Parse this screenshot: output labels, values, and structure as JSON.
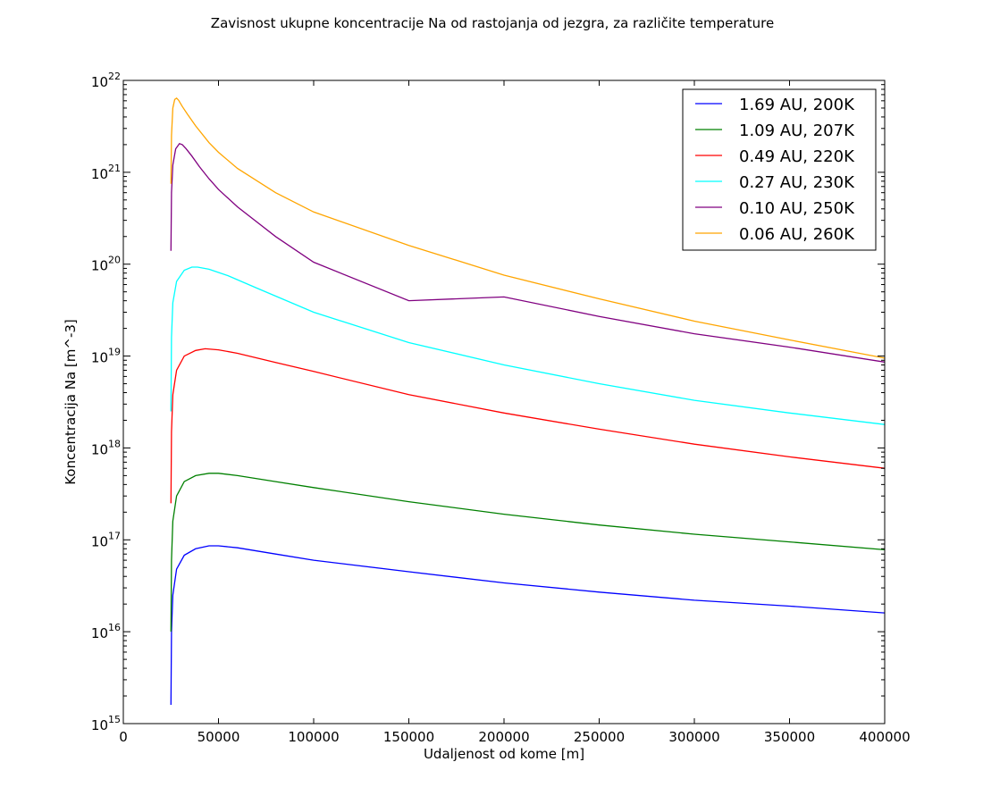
{
  "chart_data": {
    "type": "line",
    "title": "Zavisnost ukupne koncentracije Na od rastojanja od jezgra, za različite temperature",
    "xlabel": "Udaljenost od kome [m]",
    "ylabel": "Koncentracija Na [m^-3]",
    "xlim": [
      0,
      400000
    ],
    "ylim": [
      1000000000000000.0,
      1e+22
    ],
    "yscale": "log",
    "grid": false,
    "legend_position": "top-right",
    "x_ticks": [
      0,
      50000,
      100000,
      150000,
      200000,
      250000,
      300000,
      350000,
      400000
    ],
    "x_tick_labels": [
      "0",
      "50000",
      "100000",
      "150000",
      "200000",
      "250000",
      "300000",
      "350000",
      "400000"
    ],
    "y_ticks": [
      {
        "value": 1000000000000000.0,
        "base": "10",
        "exp": "15"
      },
      {
        "value": 1e+16,
        "base": "10",
        "exp": "16"
      },
      {
        "value": 1e+17,
        "base": "10",
        "exp": "17"
      },
      {
        "value": 1e+18,
        "base": "10",
        "exp": "18"
      },
      {
        "value": 1e+19,
        "base": "10",
        "exp": "19"
      },
      {
        "value": 1e+20,
        "base": "10",
        "exp": "20"
      },
      {
        "value": 1e+21,
        "base": "10",
        "exp": "21"
      },
      {
        "value": 1e+22,
        "base": "10",
        "exp": "22"
      }
    ],
    "series": [
      {
        "name": "1.69 AU, 200K",
        "color": "#0000ff",
        "x": [
          25000,
          25300,
          26000,
          28000,
          32000,
          38000,
          45000,
          50000,
          60000,
          80000,
          100000,
          150000,
          200000,
          250000,
          300000,
          350000,
          400000
        ],
        "y": [
          1600000000000000.0,
          1e+16,
          2.5e+16,
          4.8e+16,
          6.8e+16,
          8e+16,
          8.6e+16,
          8.6e+16,
          8.2e+16,
          7e+16,
          6e+16,
          4.5e+16,
          3.4e+16,
          2.7e+16,
          2.2e+16,
          1.9e+16,
          1.6e+16
        ]
      },
      {
        "name": "1.09 AU, 207K",
        "color": "#008000",
        "x": [
          25000,
          25300,
          26000,
          28000,
          32000,
          38000,
          45000,
          50000,
          60000,
          80000,
          100000,
          150000,
          200000,
          250000,
          300000,
          350000,
          400000
        ],
        "y": [
          1e+16,
          6e+16,
          1.6e+17,
          3e+17,
          4.3e+17,
          5e+17,
          5.3e+17,
          5.3e+17,
          5e+17,
          4.3e+17,
          3.7e+17,
          2.6e+17,
          1.9e+17,
          1.45e+17,
          1.15e+17,
          9.5e+16,
          7.8e+16
        ]
      },
      {
        "name": "0.49 AU, 220K",
        "color": "#ff0000",
        "x": [
          25000,
          25300,
          26000,
          28000,
          32000,
          38000,
          43000,
          50000,
          60000,
          80000,
          100000,
          150000,
          200000,
          250000,
          300000,
          350000,
          400000
        ],
        "y": [
          2.5e+17,
          1.5e+18,
          3.8e+18,
          7e+18,
          1e+19,
          1.15e+19,
          1.2e+19,
          1.17e+19,
          1.07e+19,
          8.5e+18,
          6.8e+18,
          3.8e+18,
          2.4e+18,
          1.6e+18,
          1.1e+18,
          8e+17,
          6e+17
        ]
      },
      {
        "name": "0.27 AU, 230K",
        "color": "#00ffff",
        "x": [
          25000,
          25300,
          26000,
          28000,
          32000,
          36000,
          39000,
          45000,
          55000,
          70000,
          100000,
          150000,
          200000,
          250000,
          300000,
          350000,
          400000
        ],
        "y": [
          2.5e+18,
          1.6e+19,
          3.8e+19,
          6.5e+19,
          8.6e+19,
          9.3e+19,
          9.3e+19,
          8.8e+19,
          7.5e+19,
          5.5e+19,
          3e+19,
          1.4e+19,
          8e+18,
          5e+18,
          3.3e+18,
          2.4e+18,
          1.8e+18
        ]
      },
      {
        "name": "0.10 AU, 250K",
        "color": "#800080",
        "x": [
          25000,
          25300,
          26000,
          27500,
          29500,
          31000,
          33000,
          36000,
          40000,
          45000,
          50000,
          60000,
          80000,
          100000,
          150000,
          200000,
          250000,
          300000,
          350000,
          400000
        ],
        "y": [
          1.4e+20,
          6e+20,
          1.2e+21,
          1.8e+21,
          2.05e+21,
          2e+21,
          1.8e+21,
          1.5e+21,
          1.15e+21,
          8.5e+20,
          6.5e+20,
          4.2e+20,
          2e+20,
          1.05e+20,
          4e+19,
          4.4e+19,
          2.7e+19,
          1.75e+19,
          1.25e+19,
          8.6e+18
        ]
      },
      {
        "name": "0.06 AU, 260K",
        "color": "#ffa500",
        "x": [
          25000,
          25300,
          26000,
          27000,
          28000,
          29000,
          31000,
          34000,
          38000,
          45000,
          50000,
          60000,
          80000,
          100000,
          150000,
          200000,
          250000,
          300000,
          350000,
          400000
        ],
        "y": [
          7.5e+20,
          2.5e+21,
          5e+21,
          6.2e+21,
          6.4e+21,
          6.1e+21,
          5.2e+21,
          4.2e+21,
          3.2e+21,
          2.1e+21,
          1.65e+21,
          1.1e+21,
          6e+20,
          3.7e+20,
          1.6e+20,
          7.6e+19,
          4.2e+19,
          2.4e+19,
          1.5e+19,
          9.5e+18
        ]
      }
    ]
  }
}
